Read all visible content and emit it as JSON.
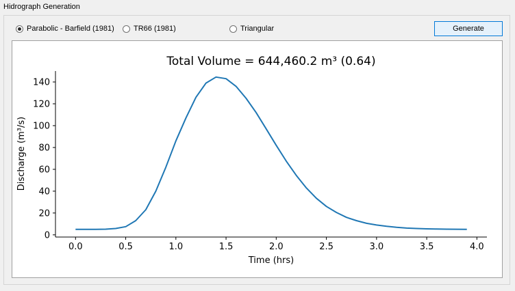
{
  "group": {
    "title": "Hidrograph Generation"
  },
  "options": [
    {
      "label": "Parabolic - Barfield (1981)",
      "checked": true
    },
    {
      "label": "TR66 (1981)",
      "checked": false
    },
    {
      "label": "Triangular",
      "checked": false
    }
  ],
  "generate_label": "Generate",
  "colors": {
    "line": "#1f77b4",
    "accent": "#0078d7"
  },
  "chart_data": {
    "type": "line",
    "title": "Total Volume = 644,460.2 m³ (0.64)",
    "xlabel": "Time (hrs)",
    "ylabel": "Discharge (m³/s)",
    "xlim": [
      -0.2,
      4.1
    ],
    "ylim": [
      -2,
      150
    ],
    "xticks": [
      0.0,
      0.5,
      1.0,
      1.5,
      2.0,
      2.5,
      3.0,
      3.5,
      4.0
    ],
    "xtick_labels": [
      "0.0",
      "0.5",
      "1.0",
      "1.5",
      "2.0",
      "2.5",
      "3.0",
      "3.5",
      "4.0"
    ],
    "yticks": [
      0,
      20,
      40,
      60,
      80,
      100,
      120,
      140
    ],
    "ytick_labels": [
      "0",
      "20",
      "40",
      "60",
      "80",
      "100",
      "120",
      "140"
    ],
    "grid": false,
    "series": [
      {
        "x": [
          0.0,
          0.1,
          0.2,
          0.3,
          0.4,
          0.5,
          0.6,
          0.7,
          0.8,
          0.9,
          1.0,
          1.1,
          1.2,
          1.3,
          1.4,
          1.5,
          1.6,
          1.7,
          1.8,
          1.9,
          2.0,
          2.1,
          2.2,
          2.3,
          2.4,
          2.5,
          2.6,
          2.7,
          2.8,
          2.9,
          3.0,
          3.1,
          3.2,
          3.3,
          3.4,
          3.5,
          3.6,
          3.7,
          3.8,
          3.9
        ],
        "y": [
          5,
          5,
          5,
          5.2,
          5.8,
          7.5,
          13,
          23,
          40,
          62,
          86,
          107,
          126,
          139,
          144.5,
          143,
          136,
          125,
          112,
          97,
          82,
          67.5,
          54.5,
          43,
          33.5,
          26,
          20.5,
          16,
          13,
          10.6,
          9,
          7.8,
          6.9,
          6.2,
          5.8,
          5.5,
          5.3,
          5.2,
          5.1,
          5.0
        ]
      }
    ]
  }
}
